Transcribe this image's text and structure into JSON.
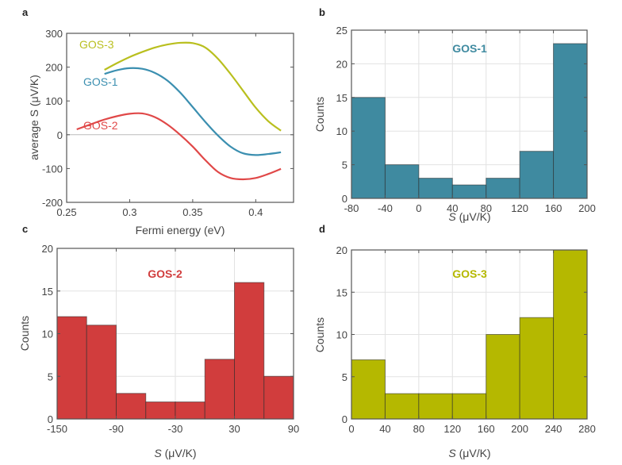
{
  "chart_data": [
    {
      "panel": "a",
      "type": "line",
      "title": "",
      "xlabel": "Fermi energy (eV)",
      "ylabel": "average S (μV/K)",
      "xlim": [
        0.25,
        0.43
      ],
      "ylim": [
        -200,
        300
      ],
      "xticks": [
        0.25,
        0.3,
        0.35,
        0.4
      ],
      "xtick_labels": [
        "0.25",
        "0.3",
        "0.35",
        "0.4"
      ],
      "yticks": [
        -200,
        -100,
        0,
        100,
        200,
        300
      ],
      "ytick_labels": [
        "-200",
        "-100",
        "0",
        "100",
        "200",
        "300"
      ],
      "zero_line": true,
      "grid": false,
      "series": [
        {
          "name": "GOS-3",
          "color": "#b9bf1e",
          "x": [
            0.28,
            0.29,
            0.3,
            0.31,
            0.32,
            0.33,
            0.34,
            0.35,
            0.36,
            0.37,
            0.38,
            0.39,
            0.4,
            0.41,
            0.42
          ],
          "y": [
            192,
            212,
            230,
            245,
            258,
            267,
            272,
            271,
            258,
            225,
            180,
            130,
            80,
            40,
            12
          ]
        },
        {
          "name": "GOS-1",
          "color": "#3b8fb0",
          "x": [
            0.28,
            0.29,
            0.3,
            0.31,
            0.32,
            0.33,
            0.34,
            0.35,
            0.36,
            0.37,
            0.38,
            0.39,
            0.4,
            0.41,
            0.42
          ],
          "y": [
            180,
            191,
            197,
            195,
            183,
            160,
            125,
            82,
            38,
            -2,
            -35,
            -55,
            -60,
            -57,
            -52
          ]
        },
        {
          "name": "GOS-2",
          "color": "#e04848",
          "x": [
            0.258,
            0.27,
            0.28,
            0.29,
            0.3,
            0.31,
            0.32,
            0.33,
            0.34,
            0.35,
            0.36,
            0.37,
            0.38,
            0.39,
            0.4,
            0.41,
            0.42
          ],
          "y": [
            16,
            32,
            45,
            55,
            62,
            63,
            52,
            30,
            0,
            -35,
            -75,
            -110,
            -128,
            -132,
            -128,
            -116,
            -101
          ]
        }
      ]
    },
    {
      "panel": "b",
      "type": "bar",
      "title": "GOS-1",
      "color": "#3f8aa0",
      "xlabel": "S (μV/K)",
      "ylabel": "Counts",
      "bin_edges": [
        -80,
        -40,
        0,
        40,
        80,
        120,
        160,
        200
      ],
      "values": [
        15,
        5,
        3,
        2,
        3,
        7,
        23
      ],
      "xlim": [
        -80,
        200
      ],
      "ylim": [
        0,
        25
      ],
      "xticks": [
        -80,
        -40,
        0,
        40,
        80,
        120,
        160,
        200
      ],
      "xtick_labels": [
        "-80",
        "-40",
        "0",
        "40",
        "80",
        "120",
        "160",
        "200"
      ],
      "yticks": [
        0,
        5,
        10,
        15,
        20,
        25
      ],
      "ytick_labels": [
        "0",
        "5",
        "10",
        "15",
        "20",
        "25"
      ],
      "grid": true
    },
    {
      "panel": "c",
      "type": "bar",
      "title": "GOS-2",
      "color": "#d13d3d",
      "xlabel": "S (μV/K)",
      "ylabel": "Counts",
      "bin_edges": [
        -150,
        -120,
        -90,
        -60,
        -30,
        0,
        30,
        60,
        90
      ],
      "values": [
        12,
        11,
        3,
        2,
        2,
        7,
        16,
        5
      ],
      "xlim": [
        -150,
        90
      ],
      "ylim": [
        0,
        20
      ],
      "xticks": [
        -150,
        -90,
        -30,
        30,
        90
      ],
      "xtick_labels": [
        "-150",
        "-90",
        "-30",
        "30",
        "90"
      ],
      "yticks": [
        0,
        5,
        10,
        15,
        20
      ],
      "ytick_labels": [
        "0",
        "5",
        "10",
        "15",
        "20"
      ],
      "grid": true
    },
    {
      "panel": "d",
      "type": "bar",
      "title": "GOS-3",
      "color": "#b5b800",
      "xlabel": "S (μV/K)",
      "ylabel": "Counts",
      "bin_edges": [
        0,
        40,
        80,
        120,
        160,
        200,
        240,
        280
      ],
      "values": [
        7,
        3,
        3,
        3,
        10,
        12,
        20
      ],
      "xlim": [
        0,
        280
      ],
      "ylim": [
        0,
        20
      ],
      "xticks": [
        0,
        40,
        80,
        120,
        160,
        200,
        240,
        280
      ],
      "xtick_labels": [
        "0",
        "40",
        "80",
        "120",
        "160",
        "200",
        "240",
        "280"
      ],
      "yticks": [
        0,
        5,
        10,
        15,
        20
      ],
      "ytick_labels": [
        "0",
        "5",
        "10",
        "15",
        "20"
      ],
      "grid": true
    }
  ]
}
